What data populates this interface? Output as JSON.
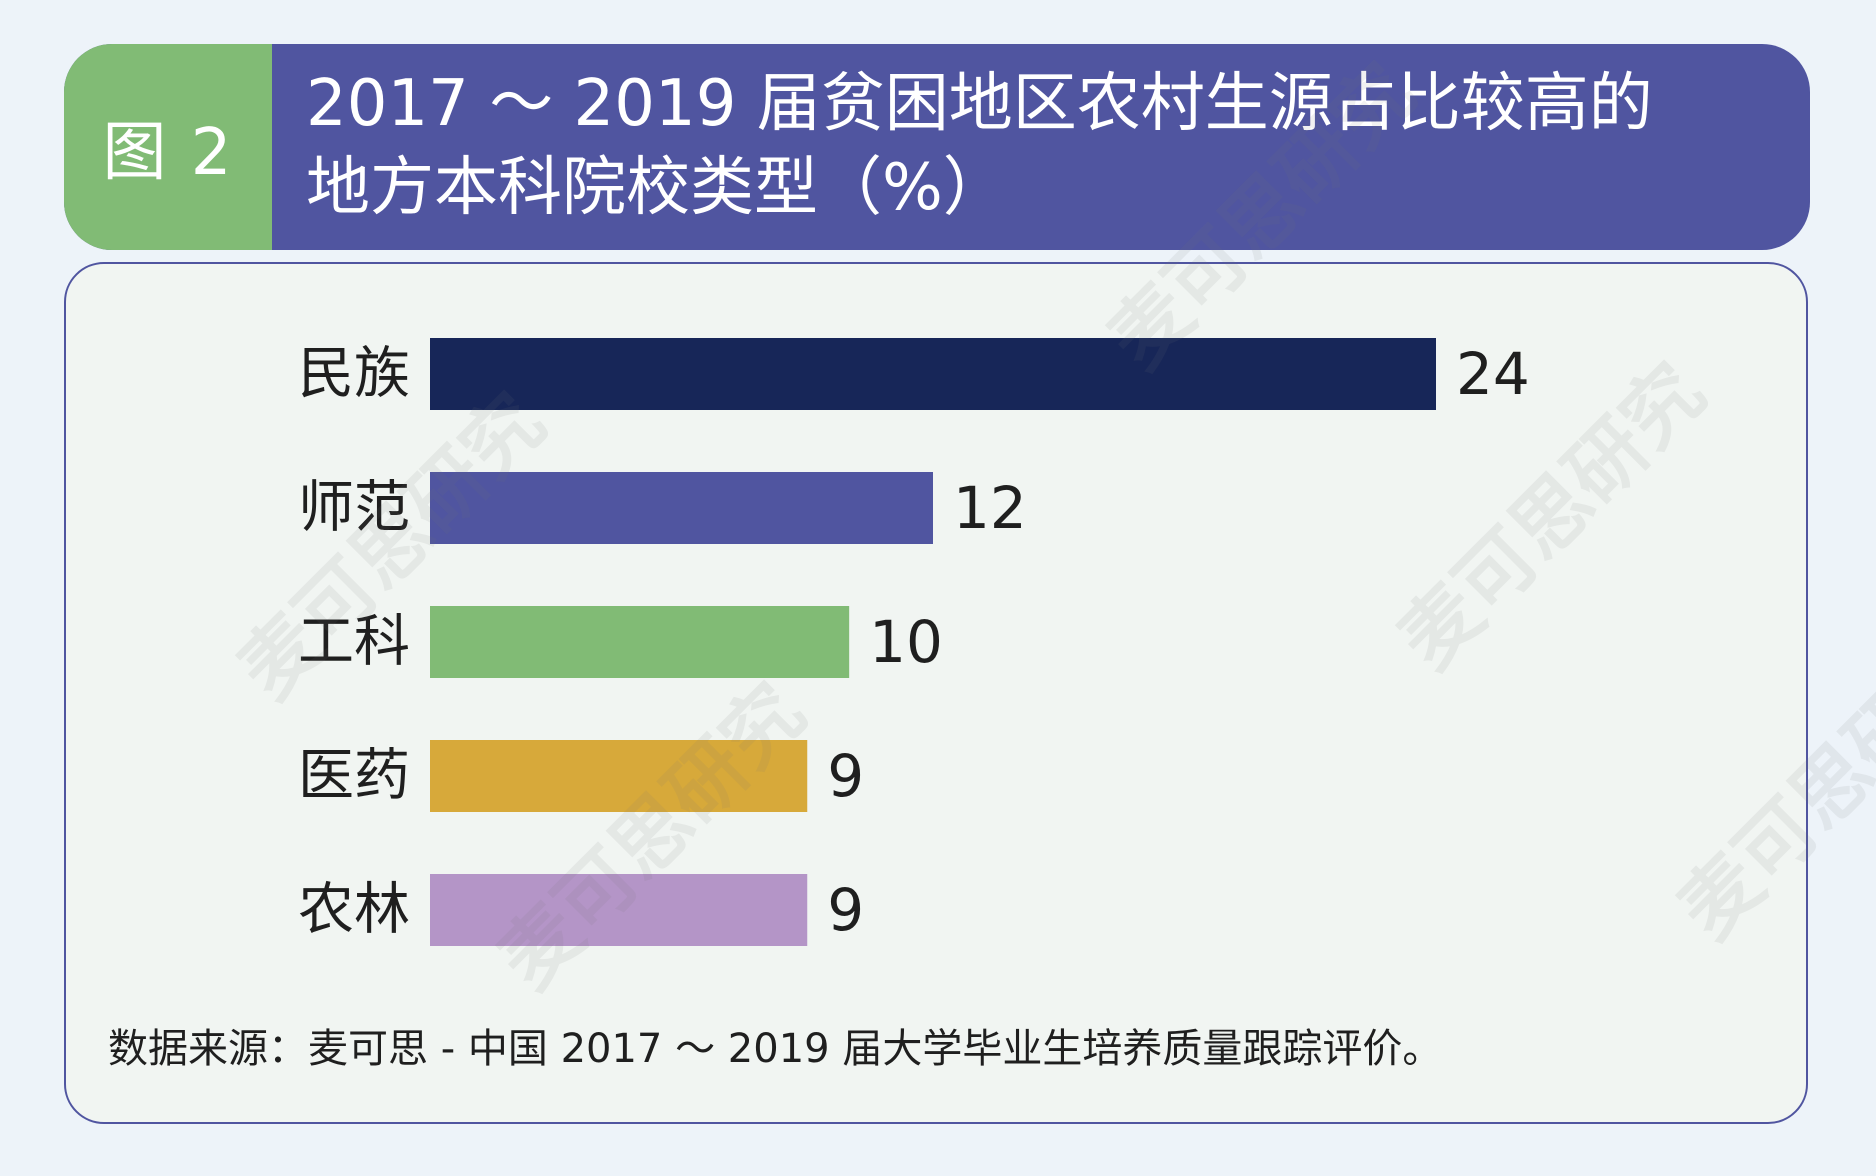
{
  "header": {
    "figure_tag": "图 2",
    "title_line1": "2017 ～ 2019 届贫困地区农村生源占比较高的",
    "title_line2": "地方本科院校类型（%）"
  },
  "chart_data": {
    "type": "bar",
    "orientation": "horizontal",
    "categories": [
      "民族",
      "师范",
      "工科",
      "医药",
      "农林"
    ],
    "values": [
      24,
      12,
      10,
      9,
      9
    ],
    "colors": [
      "#172658",
      "#5055a0",
      "#81bb75",
      "#d7a93a",
      "#b495c7"
    ],
    "title": "2017 ～ 2019 届贫困地区农村生源占比较高的地方本科院校类型（%）",
    "xlabel": "",
    "ylabel": "",
    "grid": false,
    "legend": "none"
  },
  "source": "数据来源：麦可思 - 中国 2017 ～ 2019 届大学毕业生培养质量跟踪评价。",
  "watermark": "麦可思研究"
}
